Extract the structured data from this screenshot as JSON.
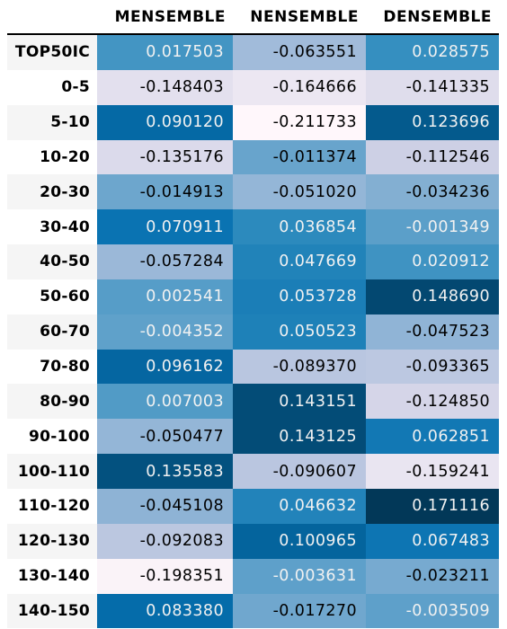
{
  "chart_data": {
    "type": "heatmap",
    "columns": [
      "MENSEMBLE",
      "NENSEMBLE",
      "DENSEMBLE"
    ],
    "rows": [
      "TOP50IC",
      "0-5",
      "5-10",
      "10-20",
      "20-30",
      "30-40",
      "40-50",
      "50-60",
      "60-70",
      "70-80",
      "80-90",
      "90-100",
      "100-110",
      "110-120",
      "120-130",
      "130-140",
      "140-150"
    ],
    "values": [
      [
        0.017503,
        -0.063551,
        0.028575
      ],
      [
        -0.148403,
        -0.164666,
        -0.141335
      ],
      [
        0.09012,
        -0.211733,
        0.123696
      ],
      [
        -0.135176,
        -0.011374,
        -0.112546
      ],
      [
        -0.014913,
        -0.05102,
        -0.034236
      ],
      [
        0.070911,
        0.036854,
        -0.001349
      ],
      [
        -0.057284,
        0.047669,
        0.020912
      ],
      [
        0.002541,
        0.053728,
        0.14869
      ],
      [
        -0.004352,
        0.050523,
        -0.047523
      ],
      [
        0.096162,
        -0.08937,
        -0.093365
      ],
      [
        0.007003,
        0.143151,
        -0.12485
      ],
      [
        -0.050477,
        0.143125,
        0.062851
      ],
      [
        0.135583,
        -0.090607,
        -0.159241
      ],
      [
        -0.045108,
        0.046632,
        0.171116
      ],
      [
        -0.092083,
        0.100965,
        0.067483
      ],
      [
        -0.198351,
        -0.003631,
        -0.023211
      ],
      [
        0.08338,
        -0.01727,
        -0.003509
      ]
    ],
    "labels": [
      [
        "0.017503",
        "-0.063551",
        "0.028575"
      ],
      [
        "-0.148403",
        "-0.164666",
        "-0.141335"
      ],
      [
        "0.090120",
        "-0.211733",
        "0.123696"
      ],
      [
        "-0.135176",
        "-0.011374",
        "-0.112546"
      ],
      [
        "-0.014913",
        "-0.051020",
        "-0.034236"
      ],
      [
        "0.070911",
        "0.036854",
        "-0.001349"
      ],
      [
        "-0.057284",
        "0.047669",
        "0.020912"
      ],
      [
        "0.002541",
        "0.053728",
        "0.148690"
      ],
      [
        "-0.004352",
        "0.050523",
        "-0.047523"
      ],
      [
        "0.096162",
        "-0.089370",
        "-0.093365"
      ],
      [
        "0.007003",
        "0.143151",
        "-0.124850"
      ],
      [
        "-0.050477",
        "0.143125",
        "0.062851"
      ],
      [
        "0.135583",
        "-0.090607",
        "-0.159241"
      ],
      [
        "-0.045108",
        "0.046632",
        "0.171116"
      ],
      [
        "-0.092083",
        "0.100965",
        "0.067483"
      ],
      [
        "-0.198351",
        "-0.003631",
        "-0.023211"
      ],
      [
        "0.083380",
        "-0.017270",
        "-0.003509"
      ]
    ],
    "colormap": "PuBu",
    "color_range": [
      -0.211733,
      0.171116
    ],
    "text_color_dark": "#000000",
    "text_color_light": "#f1f1f1",
    "row_stripe_color": "#f5f5f5"
  }
}
